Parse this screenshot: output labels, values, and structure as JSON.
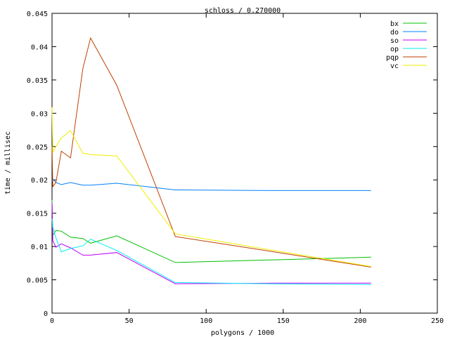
{
  "chart_data": {
    "type": "line",
    "title": "schloss / 0.270000",
    "xlabel": "polygons / 1000",
    "ylabel": "time / millisec",
    "xlim": [
      0,
      250
    ],
    "ylim": [
      0,
      0.045
    ],
    "xticks": [
      0,
      50,
      100,
      150,
      200,
      250
    ],
    "yticks": [
      0,
      0.005,
      0.01,
      0.015,
      0.02,
      0.025,
      0.03,
      0.035,
      0.04,
      0.045
    ],
    "xtick_labels": [
      "0",
      "50",
      "100",
      "150",
      "200",
      "250"
    ],
    "ytick_labels": [
      "0",
      "0.005",
      "0.01",
      "0.015",
      "0.02",
      "0.025",
      "0.03",
      "0.035",
      "0.04",
      "0.045"
    ],
    "grid": false,
    "legend_position": "top-right",
    "x": [
      0,
      0.5,
      2.5,
      6,
      12,
      20,
      25,
      42,
      80,
      144,
      207
    ],
    "series": [
      {
        "name": "bx",
        "color": "#00c000",
        "values": [
          0.017,
          0.0117,
          0.0124,
          0.0123,
          0.0114,
          0.0112,
          0.0105,
          0.0116,
          0.0076,
          0.008,
          0.0084
        ]
      },
      {
        "name": "do",
        "color": "#0080ff",
        "values": [
          0.0199,
          0.0201,
          0.0196,
          0.0193,
          0.0196,
          0.0192,
          0.0192,
          0.0195,
          0.0185,
          0.0184,
          0.0184
        ]
      },
      {
        "name": "so",
        "color": "#c000ff",
        "values": [
          0.0166,
          0.0109,
          0.0099,
          0.0104,
          0.0098,
          0.0087,
          0.0087,
          0.0091,
          0.0044,
          0.0045,
          0.0045
        ]
      },
      {
        "name": "op",
        "color": "#00eeee",
        "values": [
          0.0142,
          0.0129,
          0.0113,
          0.0092,
          0.0097,
          0.0101,
          0.0111,
          0.0094,
          0.0046,
          0.0044,
          0.0043
        ]
      },
      {
        "name": "pqp",
        "color": "#c04000",
        "values": [
          0.025,
          0.019,
          0.0196,
          0.0243,
          0.0233,
          0.0367,
          0.0413,
          0.0342,
          0.0115,
          0.0092,
          0.0069
        ]
      },
      {
        "name": "vc",
        "color": "#eeee00",
        "values": [
          0.0309,
          0.0241,
          0.025,
          0.0263,
          0.0274,
          0.024,
          0.0238,
          0.0236,
          0.0119,
          0.0094,
          0.007
        ]
      }
    ]
  }
}
